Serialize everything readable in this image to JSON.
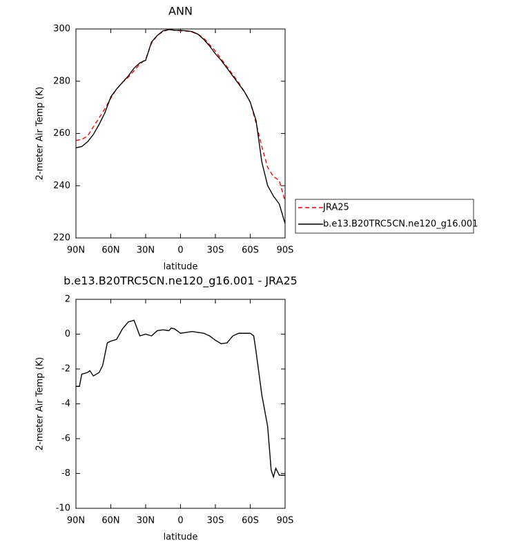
{
  "chart_data": [
    {
      "type": "line",
      "title": "ANN",
      "x_label": "latitude",
      "y_label": "2-meter Air Temp (K)",
      "x": [
        90,
        85,
        80,
        75,
        70,
        65,
        60,
        55,
        50,
        45,
        40,
        35,
        30,
        25,
        20,
        15,
        10,
        5,
        0,
        -5,
        -10,
        -15,
        -20,
        -25,
        -30,
        -35,
        -40,
        -45,
        -50,
        -55,
        -60,
        -65,
        -70,
        -75,
        -80,
        -85,
        -90
      ],
      "series": [
        {
          "name": "JRA25",
          "color": "#ff0000",
          "dashed": true,
          "values": [
            257.3,
            257.7,
            259,
            262.5,
            266,
            269.5,
            273.5,
            277,
            279.5,
            281.5,
            284,
            286.5,
            288.5,
            294.5,
            297.5,
            299,
            299.8,
            299.5,
            299.3,
            299.2,
            298.8,
            298,
            296.5,
            294,
            291.5,
            288.5,
            285.5,
            282.5,
            279.5,
            276,
            272,
            264,
            255,
            247,
            243.5,
            242,
            234
          ]
        },
        {
          "name": "b.e13.B20TRC5CN.ne120_g16.001",
          "color": "#000000",
          "dashed": false,
          "values": [
            254.5,
            255,
            256.8,
            259.6,
            263.5,
            268,
            274,
            277,
            279.5,
            282,
            285,
            287,
            288,
            295,
            297.5,
            299.3,
            299.8,
            299.5,
            299.5,
            299.3,
            299,
            298,
            296,
            293.5,
            290.5,
            288,
            285,
            282,
            279,
            276,
            272,
            265,
            249,
            240,
            236,
            233,
            225.5
          ]
        }
      ],
      "xlim": [
        90,
        -90
      ],
      "xticks": [
        {
          "value": 90,
          "label": "90N"
        },
        {
          "value": 60,
          "label": "60N"
        },
        {
          "value": 30,
          "label": "30N"
        },
        0,
        {
          "value": -30,
          "label": "30S"
        },
        {
          "value": -60,
          "label": "60S"
        },
        {
          "value": -90,
          "label": "90S"
        }
      ],
      "ylim": [
        220,
        300
      ],
      "yticks": [
        220,
        240,
        260,
        280,
        300
      ],
      "legend": "outside-right"
    },
    {
      "type": "line",
      "title": "b.e13.B20TRC5CN.ne120_g16.001 - JRA25",
      "x_label": "latitude",
      "y_label": "2-meter Air Temp (K)",
      "x": [
        90,
        87,
        85,
        80,
        78,
        75,
        70,
        67,
        63,
        60,
        55,
        50,
        45,
        40,
        35,
        30,
        25,
        20,
        15,
        10,
        8,
        5,
        0,
        -5,
        -10,
        -15,
        -20,
        -25,
        -30,
        -35,
        -40,
        -45,
        -50,
        -55,
        -60,
        -63,
        -65,
        -70,
        -75,
        -78,
        -80,
        -82,
        -85,
        -88,
        -90
      ],
      "series": [
        {
          "color": "#000000",
          "dashed": false,
          "values": [
            -3,
            -3,
            -2.3,
            -2.2,
            -2.1,
            -2.4,
            -2.2,
            -1.8,
            -0.5,
            -0.4,
            -0.3,
            0.3,
            0.7,
            0.8,
            -0.1,
            0,
            -0.1,
            0.2,
            0.25,
            0.2,
            0.35,
            0.3,
            0.05,
            0.1,
            0.15,
            0.1,
            0.05,
            -0.1,
            -0.35,
            -0.55,
            -0.5,
            -0.1,
            0.05,
            0.05,
            0.05,
            -0.1,
            -1,
            -3.5,
            -5.3,
            -7.8,
            -8.2,
            -7.7,
            -8.1,
            -8.1,
            -8.1
          ]
        }
      ],
      "xlim": [
        90,
        -90
      ],
      "xticks": [
        {
          "value": 90,
          "label": "90N"
        },
        {
          "value": 60,
          "label": "60N"
        },
        {
          "value": 30,
          "label": "30N"
        },
        0,
        {
          "value": -30,
          "label": "30S"
        },
        {
          "value": -60,
          "label": "60S"
        },
        {
          "value": -90,
          "label": "90S"
        }
      ],
      "ylim": [
        -10,
        2
      ],
      "yticks": [
        -10,
        -8,
        -6,
        -4,
        -2,
        0,
        2
      ]
    }
  ]
}
